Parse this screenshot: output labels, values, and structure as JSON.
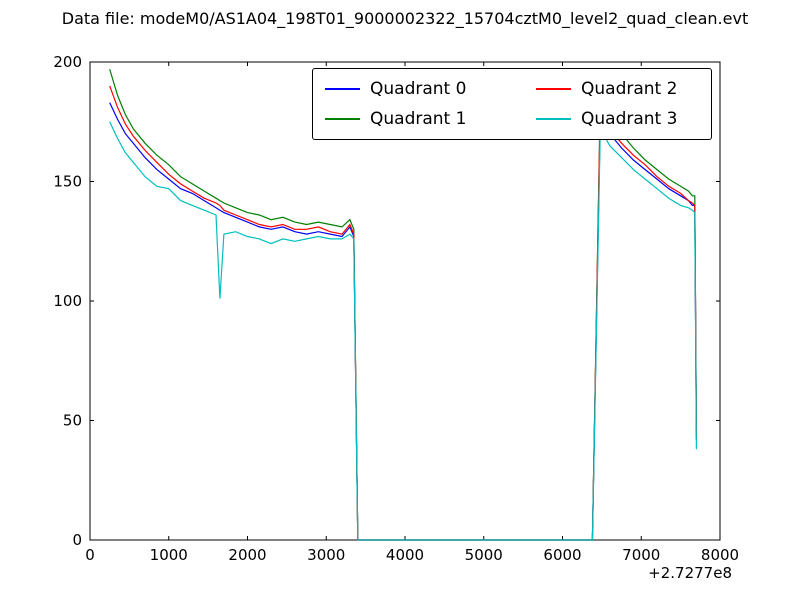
{
  "title": "Data file: modeM0/AS1A04_198T01_9000002322_15704cztM0_level2_quad_clean.evt",
  "chart_data": {
    "type": "line",
    "title": "Data file: modeM0/AS1A04_198T01_9000002322_15704cztM0_level2_quad_clean.evt",
    "xlabel": "",
    "ylabel": "",
    "xlim": [
      0,
      8000
    ],
    "ylim": [
      0,
      200
    ],
    "xticks": [
      0,
      1000,
      2000,
      3000,
      4000,
      5000,
      6000,
      7000,
      8000
    ],
    "yticks": [
      0,
      50,
      100,
      150,
      200
    ],
    "x_offset_label": "+2.7277e8",
    "grid": false,
    "legend_position": "upper center",
    "x": [
      250,
      350,
      450,
      550,
      700,
      850,
      1000,
      1150,
      1300,
      1450,
      1600,
      1650,
      1700,
      1850,
      2000,
      2150,
      2300,
      2450,
      2600,
      2750,
      2900,
      3050,
      3200,
      3300,
      3350,
      3400,
      6380,
      6480,
      6600,
      6750,
      6900,
      7050,
      7200,
      7350,
      7500,
      7600,
      7650,
      7680,
      7700
    ],
    "series": [
      {
        "name": "Quadrant 0",
        "color": "#0000ff",
        "values": [
          183,
          176,
          170,
          166,
          160,
          155,
          151,
          147,
          145,
          142,
          139,
          138,
          137,
          135,
          133,
          131,
          130,
          131,
          129,
          128,
          129,
          128,
          127,
          131,
          127,
          0,
          0,
          177,
          170,
          164,
          159,
          155,
          151,
          147,
          144,
          142,
          140,
          140,
          42
        ]
      },
      {
        "name": "Quadrant 1",
        "color": "#008000",
        "values": [
          197,
          186,
          178,
          172,
          166,
          161,
          157,
          152,
          149,
          146,
          143,
          142,
          141,
          139,
          137,
          136,
          134,
          135,
          133,
          132,
          133,
          132,
          131,
          134,
          130,
          0,
          0,
          185,
          176,
          170,
          164,
          159,
          155,
          151,
          148,
          146,
          144,
          144,
          45
        ]
      },
      {
        "name": "Quadrant 2",
        "color": "#ff0000",
        "values": [
          190,
          181,
          174,
          169,
          163,
          158,
          153,
          149,
          146,
          143,
          141,
          140,
          138,
          136,
          134,
          132,
          131,
          132,
          130,
          130,
          131,
          129,
          128,
          132,
          128,
          0,
          0,
          183,
          172,
          166,
          161,
          157,
          152,
          148,
          145,
          142,
          141,
          140,
          43
        ]
      },
      {
        "name": "Quadrant 3",
        "color": "#00bfbf",
        "values": [
          175,
          168,
          162,
          158,
          152,
          148,
          147,
          142,
          140,
          138,
          136,
          101,
          128,
          129,
          127,
          126,
          124,
          126,
          125,
          126,
          127,
          126,
          126,
          128,
          126,
          0,
          0,
          172,
          165,
          160,
          155,
          151,
          147,
          143,
          140,
          139,
          138,
          137,
          38
        ]
      }
    ]
  }
}
